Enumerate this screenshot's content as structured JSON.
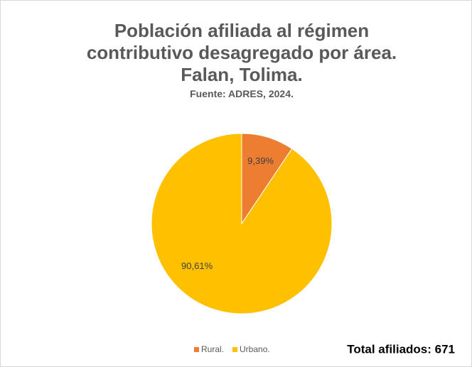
{
  "chart_data": {
    "type": "pie",
    "title": "Población afiliada al régimen contributivo desagregado por área. Falan, Tolima.",
    "subtitle": "Fuente: ADRES, 2024.",
    "categories": [
      "Rural.",
      "Urbano."
    ],
    "values": [
      9.39,
      90.61
    ],
    "value_labels": [
      "9,39%",
      "90,61%"
    ],
    "colors": [
      "#ED7D31",
      "#FFC000"
    ],
    "annotation": "Total afiliados: 671",
    "legend": "bottom"
  }
}
